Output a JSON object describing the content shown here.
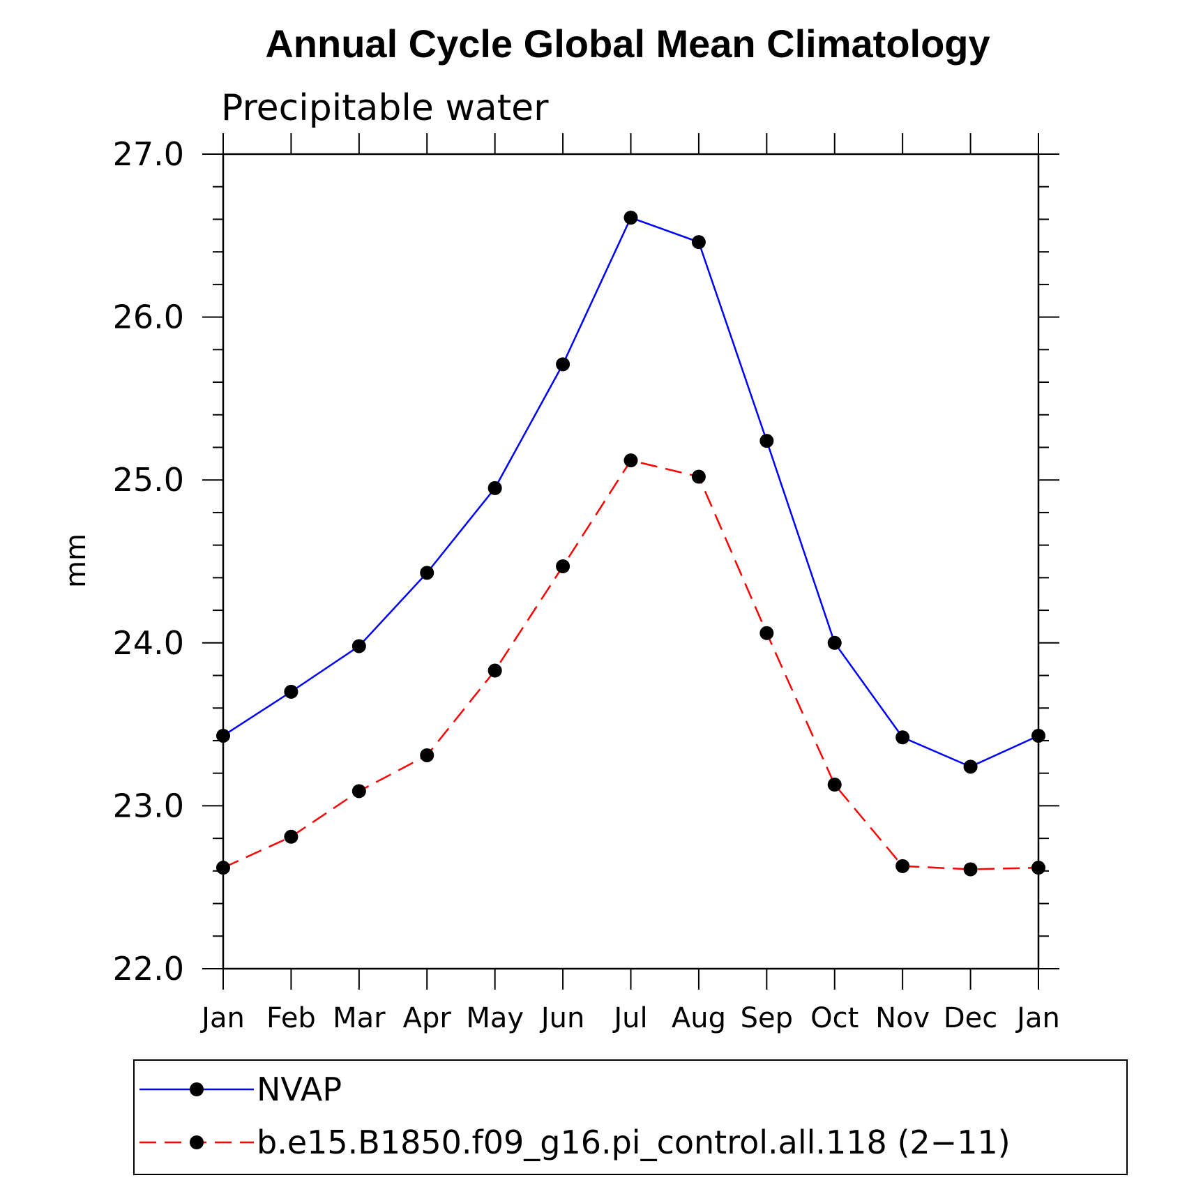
{
  "chart_data": {
    "type": "line",
    "title": "Annual Cycle Global Mean Climatology",
    "subtitle": "Precipitable water",
    "ylabel": "mm",
    "xlabel": "",
    "categories": [
      "Jan",
      "Feb",
      "Mar",
      "Apr",
      "May",
      "Jun",
      "Jul",
      "Aug",
      "Sep",
      "Oct",
      "Nov",
      "Dec",
      "Jan"
    ],
    "ylim": [
      22.0,
      27.0
    ],
    "yticks": [
      "22.0",
      "23.0",
      "24.0",
      "25.0",
      "26.0",
      "27.0"
    ],
    "grid": false,
    "legend_position": "bottom",
    "series": [
      {
        "name": "NVAP",
        "color": "#0000ff",
        "line_style": "solid",
        "marker": "filled-circle",
        "values": [
          23.43,
          23.7,
          23.98,
          24.43,
          24.95,
          25.71,
          26.61,
          26.46,
          25.24,
          24.0,
          23.42,
          23.24,
          23.43
        ]
      },
      {
        "name": "b.e15.B1850.f09_g16.pi_control.all.118 (2−11)",
        "color": "#ff0000",
        "line_style": "dashed",
        "marker": "filled-circle",
        "values": [
          22.62,
          22.81,
          23.09,
          23.31,
          23.83,
          24.47,
          25.12,
          25.02,
          24.06,
          23.13,
          22.63,
          22.61,
          22.62
        ]
      }
    ]
  }
}
